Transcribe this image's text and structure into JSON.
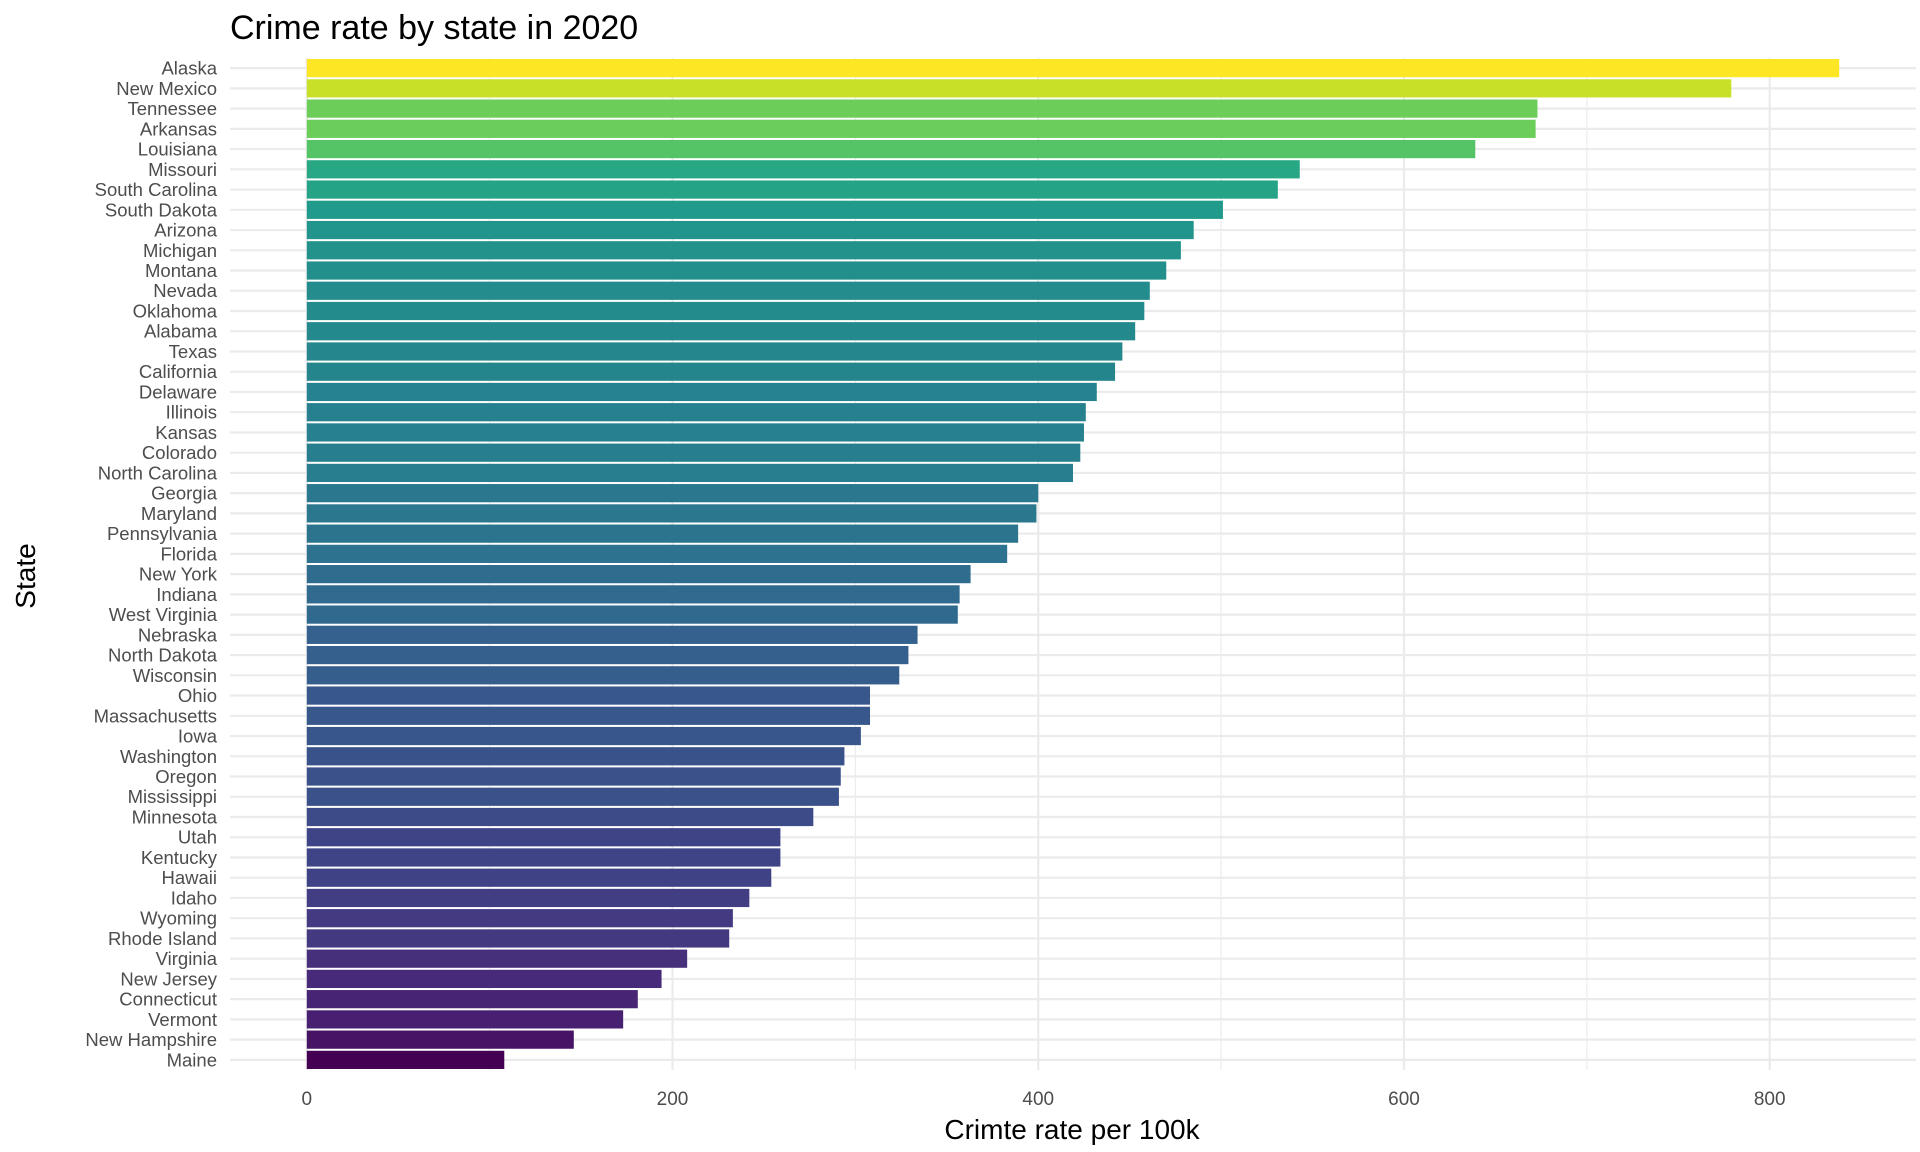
{
  "chart_data": {
    "type": "bar",
    "orientation": "horizontal",
    "title": "Crime rate by state in 2020",
    "xlabel": "Crimte rate per 100k",
    "ylabel": "State",
    "xlim": [
      -42,
      880
    ],
    "x_ticks": [
      0,
      200,
      400,
      600,
      800
    ],
    "grid": true,
    "legend": "none",
    "color_scale": "viridis",
    "categories": [
      "Alaska",
      "New Mexico",
      "Tennessee",
      "Arkansas",
      "Louisiana",
      "Missouri",
      "South Carolina",
      "South Dakota",
      "Arizona",
      "Michigan",
      "Montana",
      "Nevada",
      "Oklahoma",
      "Alabama",
      "Texas",
      "California",
      "Delaware",
      "Illinois",
      "Kansas",
      "Colorado",
      "North Carolina",
      "Georgia",
      "Maryland",
      "Pennsylvania",
      "Florida",
      "New York",
      "Indiana",
      "West Virginia",
      "Nebraska",
      "North Dakota",
      "Wisconsin",
      "Ohio",
      "Massachusetts",
      "Iowa",
      "Washington",
      "Oregon",
      "Mississippi",
      "Minnesota",
      "Utah",
      "Kentucky",
      "Hawaii",
      "Idaho",
      "Wyoming",
      "Rhode Island",
      "Virginia",
      "New Jersey",
      "Connecticut",
      "Vermont",
      "New Hampshire",
      "Maine"
    ],
    "values": [
      838,
      779,
      673,
      672,
      639,
      543,
      531,
      501,
      485,
      478,
      470,
      461,
      458,
      453,
      446,
      442,
      432,
      426,
      425,
      423,
      419,
      400,
      399,
      389,
      383,
      363,
      357,
      356,
      334,
      329,
      324,
      308,
      308,
      303,
      294,
      292,
      291,
      277,
      259,
      259,
      254,
      242,
      233,
      231,
      208,
      194,
      181,
      173,
      146,
      108
    ]
  }
}
